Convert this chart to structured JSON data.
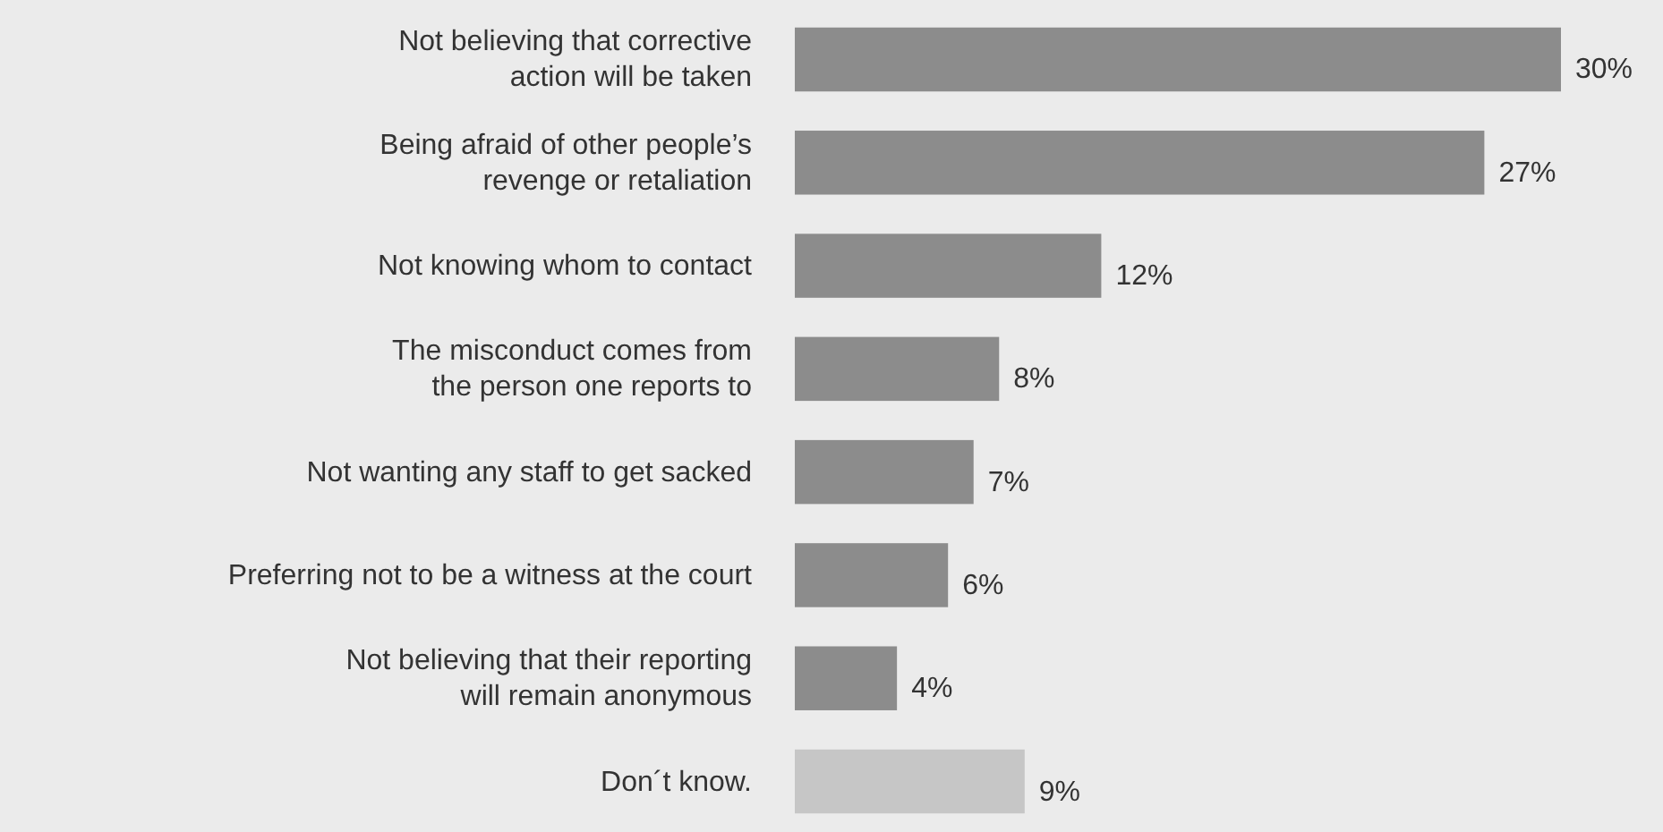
{
  "chart_data": {
    "type": "bar",
    "orientation": "horizontal",
    "data_labels": true,
    "categories": [
      "Not believing that corrective\naction will be taken",
      "Being afraid of other people’s\nrevenge or retaliation",
      "Not knowing whom to contact",
      "The misconduct comes from\nthe person one reports to",
      "Not wanting any staff to get sacked",
      "Preferring not to be a witness at the court",
      "Not believing that their reporting\nwill remain anonymous",
      "Don´t know."
    ],
    "values": [
      30,
      27,
      12,
      8,
      7,
      6,
      4,
      9
    ],
    "value_labels": [
      "30%",
      "27%",
      "12%",
      "8%",
      "7%",
      "6%",
      "4%",
      "9%"
    ],
    "colors": [
      "#8c8c8c",
      "#8c8c8c",
      "#8c8c8c",
      "#8c8c8c",
      "#8c8c8c",
      "#8c8c8c",
      "#8c8c8c",
      "#c6c6c6"
    ]
  }
}
